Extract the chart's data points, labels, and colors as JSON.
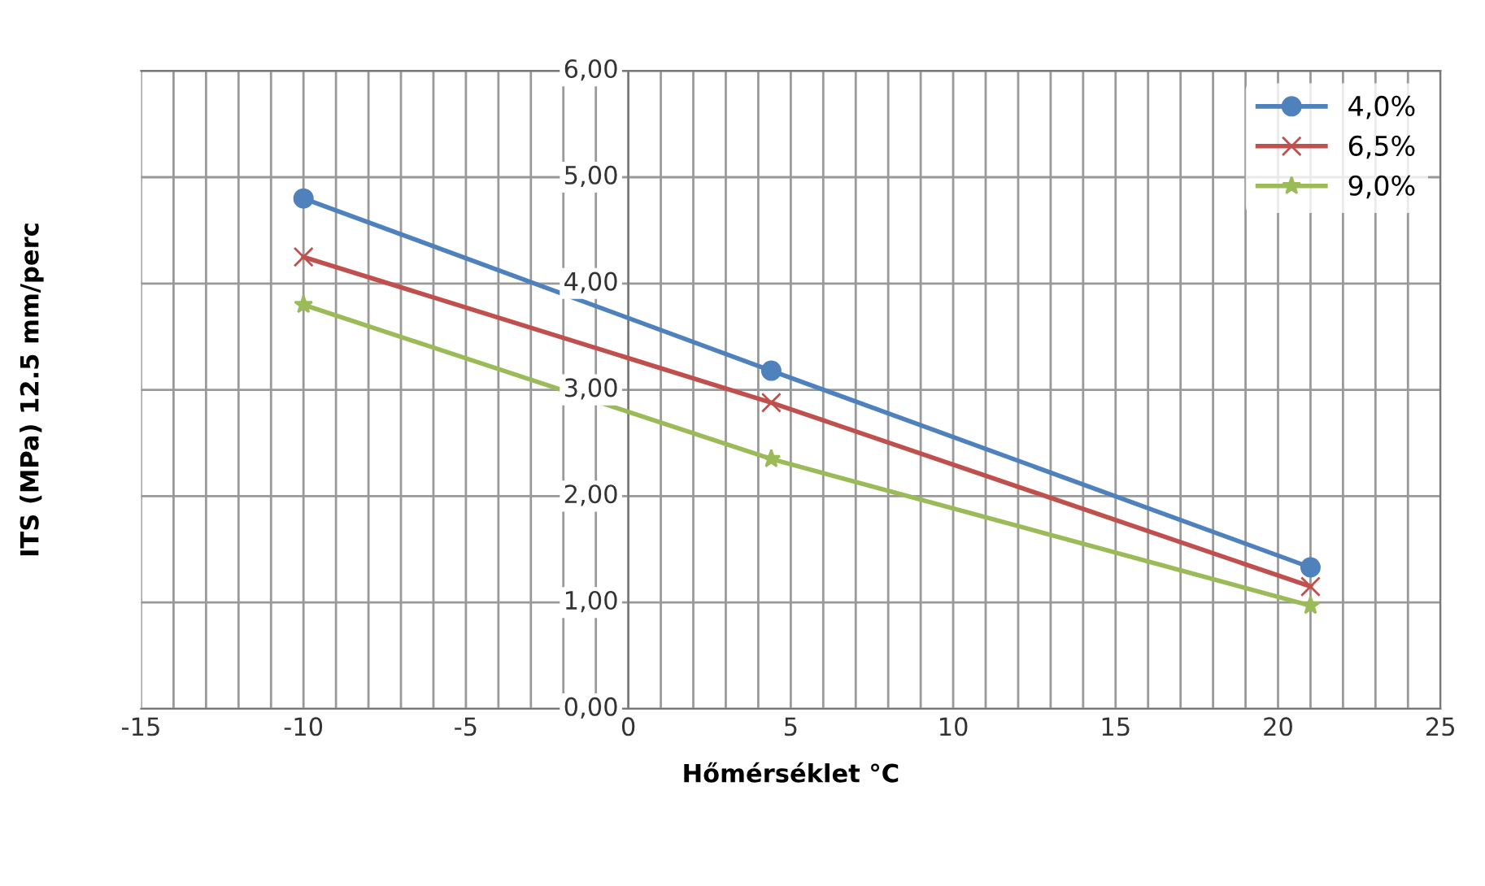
{
  "chart_data": {
    "type": "line",
    "xlabel": "Hőmérséklet °C",
    "ylabel": "ITS (MPa) 12.5 mm/perc",
    "series": [
      {
        "name": "4,0%",
        "color": "#4f81bd",
        "marker": "circle",
        "x": [
          -10,
          4.4,
          21
        ],
        "values": [
          4.8,
          3.18,
          1.33
        ]
      },
      {
        "name": "6,5%",
        "color": "#c0504d",
        "marker": "cross",
        "x": [
          -10,
          4.4,
          21
        ],
        "values": [
          4.25,
          2.88,
          1.15
        ]
      },
      {
        "name": "9,0%",
        "color": "#9bbb59",
        "marker": "star",
        "x": [
          -10,
          4.4,
          21
        ],
        "values": [
          3.8,
          2.35,
          0.97
        ]
      }
    ],
    "xlim": [
      -15,
      25
    ],
    "xticks": [
      -15,
      {
        "value": -14,
        "label": null
      },
      {
        "value": -13,
        "label": null
      },
      {
        "value": -12,
        "label": null
      },
      {
        "value": -11,
        "label": null
      },
      -10,
      {
        "value": -9,
        "label": null
      },
      {
        "value": -8,
        "label": null
      },
      {
        "value": -7,
        "label": null
      },
      {
        "value": -6,
        "label": null
      },
      -5,
      {
        "value": -4,
        "label": null
      },
      {
        "value": -3,
        "label": null
      },
      {
        "value": -2,
        "label": null
      },
      {
        "value": -1,
        "label": null
      },
      0,
      {
        "value": 1,
        "label": null
      },
      {
        "value": 2,
        "label": null
      },
      {
        "value": 3,
        "label": null
      },
      {
        "value": 4,
        "label": null
      },
      5,
      {
        "value": 6,
        "label": null
      },
      {
        "value": 7,
        "label": null
      },
      {
        "value": 8,
        "label": null
      },
      {
        "value": 9,
        "label": null
      },
      10,
      {
        "value": 11,
        "label": null
      },
      {
        "value": 12,
        "label": null
      },
      {
        "value": 13,
        "label": null
      },
      {
        "value": 14,
        "label": null
      },
      15,
      {
        "value": 16,
        "label": null
      },
      {
        "value": 17,
        "label": null
      },
      {
        "value": 18,
        "label": null
      },
      {
        "value": 19,
        "label": null
      },
      20,
      {
        "value": 21,
        "label": null
      },
      {
        "value": 22,
        "label": null
      },
      {
        "value": 23,
        "label": null
      },
      {
        "value": 24,
        "label": null
      },
      25
    ],
    "ylim": [
      0,
      6
    ],
    "yticks": [
      {
        "value": 0,
        "label": "0,00"
      },
      {
        "value": 1,
        "label": "1,00"
      },
      {
        "value": 2,
        "label": "2,00"
      },
      {
        "value": 3,
        "label": "3,00"
      },
      {
        "value": 4,
        "label": "4,00"
      },
      {
        "value": 5,
        "label": "5,00"
      },
      {
        "value": 6,
        "label": "6,00"
      }
    ],
    "grid": true,
    "legend": "top right",
    "line_style": "solid"
  }
}
